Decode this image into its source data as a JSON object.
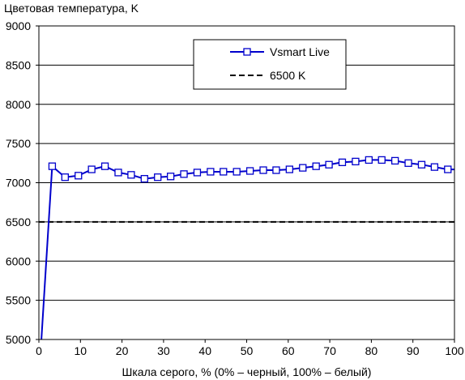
{
  "chart_data": {
    "type": "line",
    "title": "Цветовая температура, K",
    "xlabel": "Шкала серого, % (0% – черный, 100% – белый)",
    "ylabel": "",
    "xlim": [
      0,
      100
    ],
    "ylim": [
      5000,
      9000
    ],
    "xticks": [
      0,
      10,
      20,
      30,
      40,
      50,
      60,
      70,
      80,
      90,
      100
    ],
    "yticks": [
      5000,
      5500,
      6000,
      6500,
      7000,
      7500,
      8000,
      8500,
      9000
    ],
    "grid": "horizontal",
    "legend_position": "top-right",
    "series": [
      {
        "name": "Vsmart Live",
        "color": "#0000cc",
        "marker": "square-open",
        "x": [
          0.6,
          3.2,
          6.3,
          9.5,
          12.7,
          15.9,
          19.1,
          22.2,
          25.4,
          28.6,
          31.7,
          34.9,
          38.1,
          41.3,
          44.4,
          47.6,
          50.8,
          54.0,
          57.1,
          60.3,
          63.5,
          66.7,
          69.8,
          73.0,
          76.2,
          79.4,
          82.5,
          85.7,
          88.9,
          92.1,
          95.2,
          98.4,
          100.0
        ],
        "values": [
          5000,
          7210,
          7070,
          7090,
          7170,
          7210,
          7130,
          7100,
          7050,
          7070,
          7080,
          7110,
          7130,
          7140,
          7140,
          7140,
          7150,
          7160,
          7160,
          7170,
          7190,
          7210,
          7230,
          7260,
          7270,
          7290,
          7290,
          7280,
          7250,
          7230,
          7200,
          7170,
          7170
        ],
        "markers_x": [
          3.2,
          6.3,
          9.5,
          12.7,
          15.9,
          19.1,
          22.2,
          25.4,
          28.6,
          31.7,
          34.9,
          38.1,
          41.3,
          44.4,
          47.6,
          50.8,
          54.0,
          57.1,
          60.3,
          63.5,
          66.7,
          69.8,
          73.0,
          76.2,
          79.4,
          82.5,
          85.7,
          88.9,
          92.1,
          95.2,
          98.4
        ],
        "markers_y": [
          7210,
          7070,
          7090,
          7170,
          7210,
          7130,
          7100,
          7050,
          7070,
          7080,
          7110,
          7130,
          7140,
          7140,
          7140,
          7150,
          7160,
          7160,
          7170,
          7190,
          7210,
          7230,
          7260,
          7270,
          7290,
          7290,
          7280,
          7250,
          7230,
          7200,
          7170
        ]
      },
      {
        "name": "6500 K",
        "color": "#000000",
        "style": "dashed",
        "x": [
          0,
          100
        ],
        "values": [
          6500,
          6500
        ]
      }
    ]
  }
}
